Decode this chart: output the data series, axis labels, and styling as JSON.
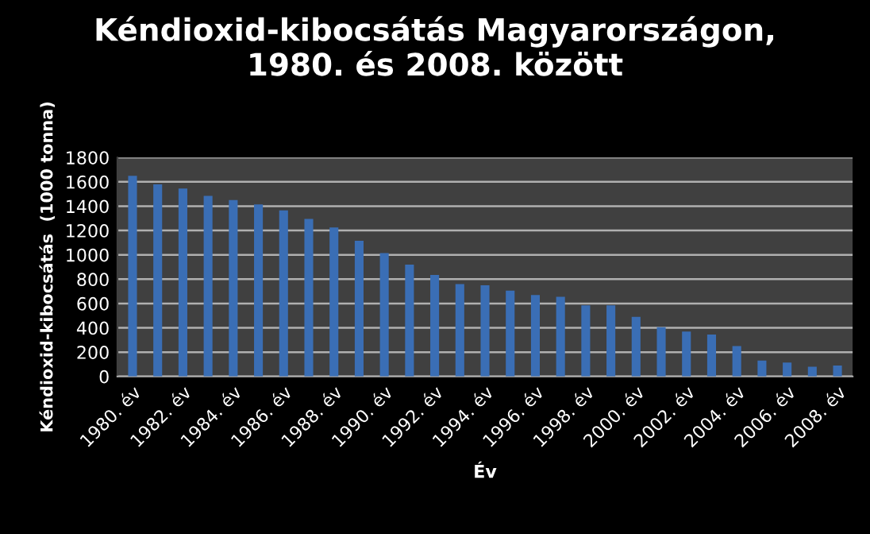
{
  "chart_data": {
    "type": "bar",
    "title": "Kéndioxid-kibocsátás Magyarországon,\n1980. és 2008. között",
    "xlabel": "Év",
    "ylabel": "Kéndioxid-kibocsátás  (1000 tonna)",
    "categories": [
      "1980. év",
      null,
      "1982. év",
      null,
      "1984. év",
      null,
      "1986. év",
      null,
      "1988. év",
      null,
      "1990. év",
      null,
      "1992. év",
      null,
      "1994. év",
      null,
      "1996. év",
      null,
      "1998. év",
      null,
      "2000. év",
      null,
      "2002. év",
      null,
      "2004. év",
      null,
      "2006. év",
      null,
      "2008. év"
    ],
    "values": [
      1650,
      1580,
      1545,
      1485,
      1450,
      1415,
      1365,
      1295,
      1225,
      1115,
      1015,
      920,
      835,
      760,
      750,
      705,
      670,
      655,
      585,
      585,
      490,
      405,
      370,
      345,
      250,
      130,
      115,
      80,
      90
    ],
    "color": "#3a6eb5",
    "ylim": [
      0,
      1800
    ],
    "yticks": [
      0,
      200,
      400,
      600,
      800,
      1000,
      1200,
      1400,
      1600,
      1800
    ],
    "grid": "y",
    "legend": false
  }
}
